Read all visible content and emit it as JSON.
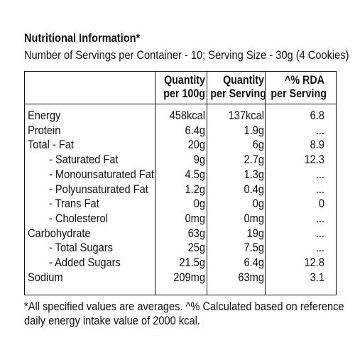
{
  "title": "Nutritional Information*",
  "subtitle": "Number of Servings per Container - 10; Serving Size - 30g  (4 Cookies)",
  "headers": {
    "col1": [
      "Quantity",
      "per 100g"
    ],
    "col2": [
      "Quantity",
      "per Serving"
    ],
    "col3": [
      "^% RDA",
      "per Serving"
    ]
  },
  "rows": [
    {
      "name": "Energy",
      "per100": "458kcal",
      "perServing": "137kcal",
      "rda": "6.8"
    },
    {
      "name": "Protein",
      "per100": "6.4g",
      "perServing": "1.9g",
      "rda": "..."
    },
    {
      "name": "Total - Fat",
      "per100": "20g",
      "perServing": "6g",
      "rda": "8.9"
    },
    {
      "name": "- Saturated Fat",
      "per100": "9g",
      "perServing": "2.7g",
      "rda": "12.3"
    },
    {
      "name": "- Monounsaturated Fat",
      "per100": "4.5g",
      "perServing": "1.3g",
      "rda": "..."
    },
    {
      "name": "- Polyunsaturated Fat",
      "per100": "1.2g",
      "perServing": "0.4g",
      "rda": "..."
    },
    {
      "name": "- Trans Fat",
      "per100": "0g",
      "perServing": "0g",
      "rda": "0"
    },
    {
      "name": "- Cholesterol",
      "per100": "0mg",
      "perServing": "0mg",
      "rda": "..."
    },
    {
      "name": "Carbohydrate",
      "per100": "63g",
      "perServing": "19g",
      "rda": "..."
    },
    {
      "name": "- Total Sugars",
      "per100": "25g",
      "perServing": "7.5g",
      "rda": "..."
    },
    {
      "name": "- Added Sugars",
      "per100": "21.5g",
      "perServing": "6.4g",
      "rda": "12.8"
    },
    {
      "name": "Sodium",
      "per100": "209mg",
      "perServing": "63mg",
      "rda": "3.1"
    }
  ],
  "footnote": [
    "*All specified values are averages. ^% Calculated based on reference",
    "daily energy intake value of 2000 kcal."
  ]
}
